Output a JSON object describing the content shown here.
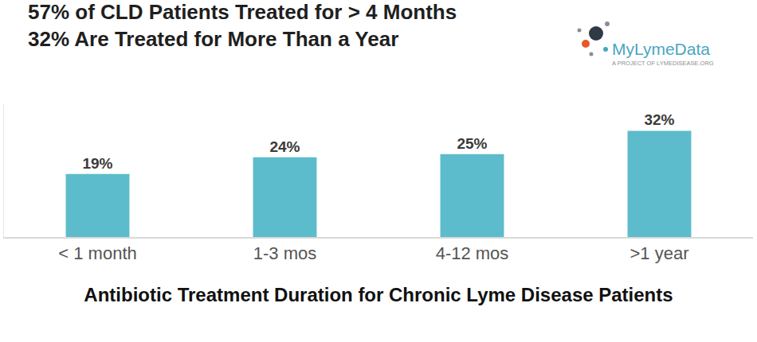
{
  "chart_data": {
    "type": "bar",
    "title": "57% of CLD Patients Treated for > 4 Months",
    "subtitle": "32% Are Treated for More Than a Year",
    "x_label": "Antibiotic Treatment Duration for Chronic Lyme Disease Patients",
    "logo": {
      "text": "MyLymeData",
      "tagline": "A PROJECT OF LYMEDISEASE.ORG"
    },
    "categories": [
      "< 1 month",
      "1-3 mos",
      "4-12 mos",
      ">1 year"
    ],
    "values": [
      19,
      24,
      25,
      32
    ],
    "value_labels": [
      "19%",
      "24%",
      "25%",
      "32%"
    ],
    "color": "#5dbccb",
    "ylim": [
      0,
      40
    ],
    "yticks": [],
    "grid": false,
    "data_labels": true,
    "tick_labels": "x"
  }
}
